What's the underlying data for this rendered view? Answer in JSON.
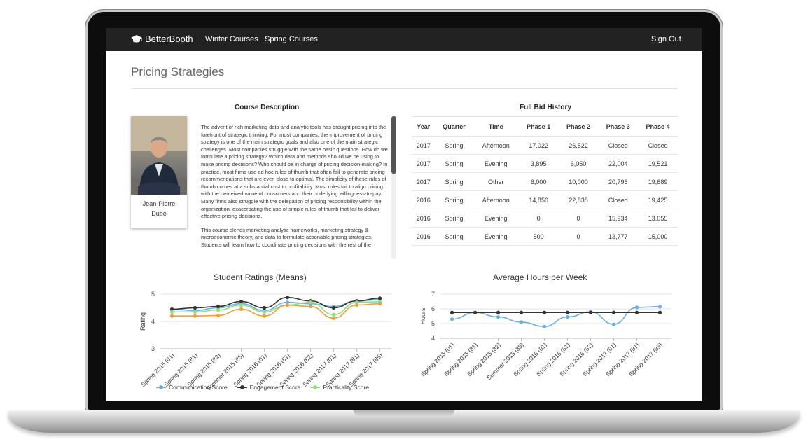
{
  "navbar": {
    "brand": "BetterBooth",
    "links": [
      "Winter Courses",
      "Spring Courses"
    ],
    "sign_out": "Sign Out"
  },
  "page": {
    "title": "Pricing Strategies",
    "description_heading": "Course Description",
    "bid_heading": "Full Bid History"
  },
  "instructor": {
    "first_name": "Jean-Pierre",
    "last_name": "Dubé"
  },
  "description": {
    "p1": "The advent of rich marketing data and analytic tools has brought pricing into the forefront of strategic thinking. For most companies, the improvement of pricing strategy is one of the main strategic goals and also one of the main strategic challenges. Most companies struggle with the same basic questions. How do we formulate a pricing strategy? Which data and methods should we be using to make pricing decisions? Who should be in charge of pricing decision-making? In practice, most firms use ad hoc rules of thumb that often fail to generate pricing recommendations that are even close to optimal. The simplicity of these rules of thumb comes at a substantial cost to profitability. Most rules fail to align pricing with the perceived value of consumers and their underlying willingness-to-pay. Many firms also struggle with the delegation of pricing responsibility within the organization, exacerbating the use of simple rules of thumb that fail to deliver effective pricing decisions.",
    "p2": "This course blends marketing analytic frameworks, marketing strategy & microeconomic theory, and data to formulate actionable pricing strategies. Students will learn how to coordinate pricing decisions with the rest of the"
  },
  "bid_table": {
    "headers": [
      "Year",
      "Quarter",
      "Time",
      "Phase 1",
      "Phase 2",
      "Phase 3",
      "Phase 4"
    ],
    "rows": [
      [
        "2017",
        "Spring",
        "Afternoon",
        "17,022",
        "26,522",
        "Closed",
        "Closed"
      ],
      [
        "2017",
        "Spring",
        "Evening",
        "3,895",
        "6,050",
        "22,004",
        "19,521"
      ],
      [
        "2017",
        "Spring",
        "Other",
        "6,000",
        "10,000",
        "20,796",
        "19,689"
      ],
      [
        "2016",
        "Spring",
        "Afternoon",
        "14,850",
        "22,838",
        "Closed",
        "19,425"
      ],
      [
        "2016",
        "Spring",
        "Evening",
        "0",
        "0",
        "15,934",
        "13,055"
      ],
      [
        "2016",
        "Spring",
        "Evening",
        "500",
        "0",
        "13,777",
        "15,000"
      ]
    ]
  },
  "chart_data": [
    {
      "type": "line",
      "title": "Student Ratings (Means)",
      "xlabel": "",
      "ylabel": "Rating",
      "ylim": [
        3,
        5
      ],
      "yticks": [
        3,
        4,
        5
      ],
      "categories": [
        "Spring 2015 (01)",
        "Spring 2015 (81)",
        "Spring 2015 (82)",
        "Summer 2015 (85)",
        "Spring 2016 (01)",
        "Spring 2016 (81)",
        "Spring 2016 (82)",
        "Spring 2017 (01)",
        "Spring 2017 (81)",
        "Spring 2017 (85)"
      ],
      "series": [
        {
          "name": "Communication Score",
          "color": "#6aaee8",
          "values": [
            4.45,
            4.4,
            4.5,
            4.65,
            4.4,
            4.7,
            4.65,
            4.55,
            4.75,
            4.8
          ]
        },
        {
          "name": "Engagement Score",
          "color": "#333333",
          "values": [
            4.45,
            4.5,
            4.55,
            4.73,
            4.5,
            4.88,
            4.75,
            4.5,
            4.75,
            4.85
          ]
        },
        {
          "name": "Practicality Score",
          "color": "#8fe07a",
          "values": [
            4.35,
            4.35,
            4.42,
            4.6,
            4.35,
            4.6,
            4.7,
            4.25,
            4.7,
            4.72
          ]
        },
        {
          "name": "",
          "color": "#f39c3d",
          "values": [
            4.2,
            4.2,
            4.22,
            4.45,
            4.2,
            4.6,
            4.55,
            4.12,
            4.6,
            4.65
          ]
        }
      ],
      "legend": "bottom"
    },
    {
      "type": "line",
      "title": "Average Hours per Week",
      "xlabel": "",
      "ylabel": "Hours",
      "ylim": [
        4,
        7
      ],
      "yticks": [
        4,
        5,
        6,
        7
      ],
      "categories": [
        "Spring 2015 (01)",
        "Spring 2015 (81)",
        "Spring 2015 (82)",
        "Summer 2015 (85)",
        "Spring 2016 (01)",
        "Spring 2016 (81)",
        "Spring 2016 (82)",
        "Spring 2017 (01)",
        "Spring 2017 (81)",
        "Spring 2017 (85)"
      ],
      "series": [
        {
          "name": "",
          "color": "#6aaee8",
          "values": [
            5.3,
            5.75,
            5.45,
            5.1,
            4.8,
            5.45,
            5.8,
            4.95,
            6.1,
            6.15
          ]
        },
        {
          "name": "",
          "color": "#333333",
          "values": [
            5.75,
            5.75,
            5.75,
            5.75,
            5.75,
            5.75,
            5.75,
            5.75,
            5.75,
            5.75
          ]
        }
      ]
    }
  ]
}
